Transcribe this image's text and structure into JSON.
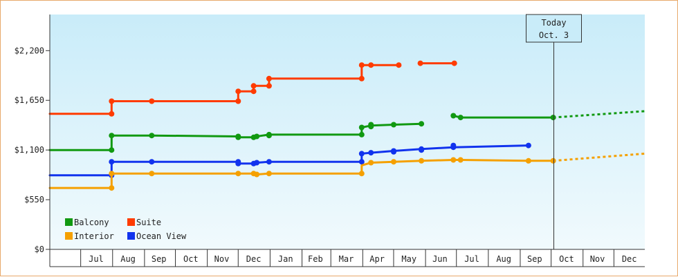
{
  "chart_data": {
    "type": "line",
    "y_ticks": [
      {
        "value": 0,
        "label": "$0"
      },
      {
        "value": 550,
        "label": "$550"
      },
      {
        "value": 1100,
        "label": "$1,100"
      },
      {
        "value": 1650,
        "label": "$1,650"
      },
      {
        "value": 2200,
        "label": "$2,200"
      }
    ],
    "ylim": [
      0,
      2600
    ],
    "xlim": [
      "2024-06-01",
      "2025-12-31"
    ],
    "months": [
      {
        "label": "Jul",
        "date": "2024-07-16"
      },
      {
        "label": "Aug",
        "date": "2024-08-16"
      },
      {
        "label": "Sep",
        "date": "2024-09-15"
      },
      {
        "label": "Oct",
        "date": "2024-10-16"
      },
      {
        "label": "Nov",
        "date": "2024-11-15"
      },
      {
        "label": "Dec",
        "date": "2024-12-16"
      },
      {
        "label": "Jan",
        "date": "2025-01-16"
      },
      {
        "label": "Feb",
        "date": "2025-02-14"
      },
      {
        "label": "Mar",
        "date": "2025-03-16"
      },
      {
        "label": "Apr",
        "date": "2025-04-15"
      },
      {
        "label": "May",
        "date": "2025-05-16"
      },
      {
        "label": "Jun",
        "date": "2025-06-15"
      },
      {
        "label": "Jul",
        "date": "2025-07-16"
      },
      {
        "label": "Aug",
        "date": "2025-08-16"
      },
      {
        "label": "Sep",
        "date": "2025-09-15"
      },
      {
        "label": "Oct",
        "date": "2025-10-16"
      },
      {
        "label": "Nov",
        "date": "2025-11-15"
      },
      {
        "label": "Dec",
        "date": "2025-12-16"
      }
    ],
    "month_boundaries": [
      "2024-07-01",
      "2024-08-01",
      "2024-09-01",
      "2024-10-01",
      "2024-11-01",
      "2024-12-01",
      "2025-01-01",
      "2025-02-01",
      "2025-03-01",
      "2025-04-01",
      "2025-05-01",
      "2025-06-01",
      "2025-07-01",
      "2025-08-01",
      "2025-09-01",
      "2025-10-01",
      "2025-11-01",
      "2025-12-01"
    ],
    "today": {
      "line1": "Today",
      "line2": "Oct. 3",
      "date": "2025-10-03"
    },
    "legend_placement": "bottom-left",
    "series": [
      {
        "name": "Suite",
        "color": "#ff3b00",
        "segments": [
          [
            [
              "2024-06-01",
              1500
            ],
            [
              "2024-07-31",
              1500
            ],
            [
              "2024-07-31",
              1640
            ],
            [
              "2024-09-08",
              1640
            ],
            [
              "2024-12-01",
              1640
            ],
            [
              "2024-12-01",
              1750
            ],
            [
              "2024-12-16",
              1750
            ],
            [
              "2024-12-16",
              1810
            ],
            [
              "2024-12-31",
              1810
            ],
            [
              "2024-12-31",
              1890
            ],
            [
              "2025-03-31",
              1890
            ],
            [
              "2025-03-31",
              2040
            ],
            [
              "2025-04-09",
              2040
            ],
            [
              "2025-05-06",
              2040
            ]
          ],
          [
            [
              "2025-05-27",
              2060
            ],
            [
              "2025-06-29",
              2060
            ]
          ]
        ],
        "markers": [
          [
            "2024-07-31",
            1500
          ],
          [
            "2024-07-31",
            1640
          ],
          [
            "2024-09-08",
            1640
          ],
          [
            "2024-12-01",
            1640
          ],
          [
            "2024-12-01",
            1750
          ],
          [
            "2024-12-16",
            1750
          ],
          [
            "2024-12-16",
            1810
          ],
          [
            "2024-12-31",
            1810
          ],
          [
            "2024-12-31",
            1890
          ],
          [
            "2025-03-31",
            1890
          ],
          [
            "2025-03-31",
            2040
          ],
          [
            "2025-04-09",
            2040
          ],
          [
            "2025-05-06",
            2040
          ],
          [
            "2025-05-27",
            2060
          ],
          [
            "2025-06-29",
            2060
          ]
        ],
        "projection": []
      },
      {
        "name": "Balcony",
        "color": "#119911",
        "segments": [
          [
            [
              "2024-06-01",
              1100
            ],
            [
              "2024-07-31",
              1100
            ],
            [
              "2024-07-31",
              1260
            ],
            [
              "2024-09-08",
              1260
            ],
            [
              "2024-12-01",
              1250
            ],
            [
              "2024-12-01",
              1240
            ],
            [
              "2024-12-16",
              1240
            ],
            [
              "2024-12-19",
              1250
            ],
            [
              "2024-12-31",
              1270
            ],
            [
              "2025-03-31",
              1270
            ],
            [
              "2025-03-31",
              1350
            ],
            [
              "2025-04-09",
              1370
            ],
            [
              "2025-04-31",
              1380
            ],
            [
              "2025-05-28",
              1390
            ]
          ],
          [
            [
              "2025-06-28",
              1480
            ],
            [
              "2025-07-05",
              1460
            ],
            [
              "2025-10-03",
              1460
            ]
          ]
        ],
        "markers": [
          [
            "2024-07-31",
            1100
          ],
          [
            "2024-07-31",
            1260
          ],
          [
            "2024-09-08",
            1260
          ],
          [
            "2024-12-01",
            1250
          ],
          [
            "2024-12-01",
            1240
          ],
          [
            "2024-12-16",
            1240
          ],
          [
            "2024-12-19",
            1250
          ],
          [
            "2024-12-31",
            1260
          ],
          [
            "2024-12-31",
            1270
          ],
          [
            "2025-03-31",
            1270
          ],
          [
            "2025-03-31",
            1350
          ],
          [
            "2025-04-09",
            1360
          ],
          [
            "2025-04-09",
            1380
          ],
          [
            "2025-05-01",
            1380
          ],
          [
            "2025-05-28",
            1390
          ],
          [
            "2025-06-28",
            1480
          ],
          [
            "2025-07-05",
            1460
          ],
          [
            "2025-10-03",
            1460
          ]
        ],
        "projection": [
          [
            "2025-10-03",
            1460
          ],
          [
            "2025-12-31",
            1530
          ]
        ]
      },
      {
        "name": "Ocean View",
        "color": "#1133ee",
        "segments": [
          [
            [
              "2024-06-01",
              820
            ],
            [
              "2024-07-31",
              820
            ],
            [
              "2024-07-31",
              970
            ],
            [
              "2024-09-08",
              970
            ],
            [
              "2024-12-01",
              970
            ],
            [
              "2024-12-01",
              950
            ],
            [
              "2024-12-16",
              950
            ],
            [
              "2024-12-19",
              960
            ],
            [
              "2024-12-31",
              970
            ],
            [
              "2025-03-31",
              970
            ],
            [
              "2025-03-31",
              1060
            ],
            [
              "2025-04-09",
              1070
            ],
            [
              "2025-05-01",
              1090
            ],
            [
              "2025-05-28",
              1110
            ],
            [
              "2025-06-28",
              1130
            ],
            [
              "2025-09-09",
              1150
            ]
          ]
        ],
        "markers": [
          [
            "2024-07-31",
            820
          ],
          [
            "2024-07-31",
            970
          ],
          [
            "2024-09-08",
            970
          ],
          [
            "2024-12-01",
            970
          ],
          [
            "2024-12-01",
            950
          ],
          [
            "2024-12-16",
            950
          ],
          [
            "2024-12-19",
            960
          ],
          [
            "2024-12-31",
            970
          ],
          [
            "2025-03-31",
            970
          ],
          [
            "2025-03-31",
            1060
          ],
          [
            "2025-04-09",
            1070
          ],
          [
            "2025-05-01",
            1080
          ],
          [
            "2025-05-01",
            1090
          ],
          [
            "2025-05-28",
            1100
          ],
          [
            "2025-05-28",
            1110
          ],
          [
            "2025-06-28",
            1130
          ],
          [
            "2025-06-28",
            1150
          ],
          [
            "2025-09-09",
            1150
          ]
        ],
        "projection": []
      },
      {
        "name": "Interior",
        "color": "#f5a000",
        "segments": [
          [
            [
              "2024-06-01",
              680
            ],
            [
              "2024-07-31",
              680
            ],
            [
              "2024-07-31",
              840
            ],
            [
              "2024-09-08",
              840
            ],
            [
              "2024-12-01",
              840
            ],
            [
              "2024-12-16",
              840
            ],
            [
              "2024-12-19",
              830
            ],
            [
              "2024-12-31",
              840
            ],
            [
              "2025-03-31",
              840
            ],
            [
              "2025-03-31",
              930
            ],
            [
              "2025-04-09",
              960
            ],
            [
              "2025-05-01",
              970
            ],
            [
              "2025-05-28",
              980
            ],
            [
              "2025-06-28",
              990
            ],
            [
              "2025-07-05",
              990
            ],
            [
              "2025-09-09",
              980
            ],
            [
              "2025-10-03",
              980
            ]
          ]
        ],
        "markers": [
          [
            "2024-07-31",
            680
          ],
          [
            "2024-07-31",
            840
          ],
          [
            "2024-09-08",
            840
          ],
          [
            "2024-12-01",
            840
          ],
          [
            "2024-12-16",
            840
          ],
          [
            "2024-12-19",
            830
          ],
          [
            "2024-12-31",
            840
          ],
          [
            "2025-03-31",
            840
          ],
          [
            "2025-04-09",
            960
          ],
          [
            "2025-05-01",
            970
          ],
          [
            "2025-05-28",
            980
          ],
          [
            "2025-06-28",
            990
          ],
          [
            "2025-07-05",
            990
          ],
          [
            "2025-09-09",
            980
          ],
          [
            "2025-10-03",
            980
          ]
        ],
        "projection": [
          [
            "2025-10-03",
            980
          ],
          [
            "2025-12-31",
            1060
          ]
        ]
      }
    ],
    "legend": [
      {
        "name": "Balcony",
        "color": "#119911"
      },
      {
        "name": "Suite",
        "color": "#ff3b00"
      },
      {
        "name": "Interior",
        "color": "#f5a000"
      },
      {
        "name": "Ocean View",
        "color": "#1133ee"
      }
    ]
  }
}
